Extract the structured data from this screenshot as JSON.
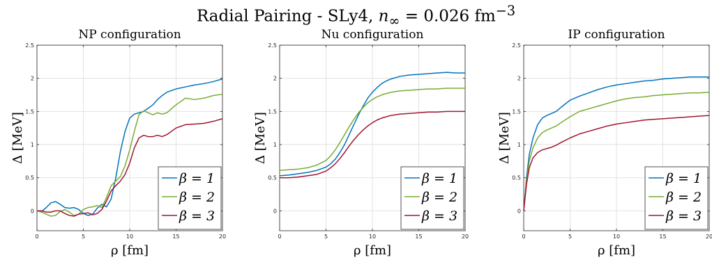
{
  "suptitle": {
    "prefix": "Radial Pairing - SLy4, ",
    "n_sym": "n",
    "n_sub": "∞",
    "value": " = 0.026 fm",
    "exp": "−3"
  },
  "colors": {
    "beta1": "#0072BD",
    "beta2": "#77AC30",
    "beta3": "#A2142F",
    "grid": "#e2e2e2",
    "axis": "#262626"
  },
  "chart_data": [
    {
      "type": "line",
      "title": "NP configuration",
      "xlabel": "ρ [fm]",
      "ylabel": "Δ [MeV]",
      "xlim": [
        0,
        20
      ],
      "ylim": [
        -0.3,
        2.5
      ],
      "xticks": [
        0,
        5,
        10,
        15,
        20
      ],
      "yticks": [
        0,
        0.5,
        1,
        1.5,
        2,
        2.5
      ],
      "grid": true,
      "legend_position": "bottom-right",
      "series": [
        {
          "name": "β = 1",
          "color": "#0072BD",
          "x": [
            0,
            0.5,
            1,
            1.5,
            2,
            2.5,
            3,
            3.5,
            4,
            4.5,
            5,
            5.5,
            6,
            6.5,
            7,
            7.5,
            8,
            8.5,
            9,
            9.5,
            10,
            10.5,
            11,
            11.5,
            12,
            12.5,
            13,
            13.5,
            14,
            15,
            16,
            17,
            18,
            19,
            20
          ],
          "y": [
            0,
            -0.01,
            0.05,
            0.12,
            0.14,
            0.1,
            0.05,
            0.04,
            0.05,
            0.02,
            -0.04,
            -0.07,
            -0.05,
            0.04,
            0.1,
            0.06,
            0.18,
            0.5,
            0.9,
            1.2,
            1.4,
            1.46,
            1.48,
            1.5,
            1.55,
            1.6,
            1.68,
            1.74,
            1.79,
            1.84,
            1.87,
            1.9,
            1.92,
            1.95,
            1.99
          ]
        },
        {
          "name": "β = 2",
          "color": "#77AC30",
          "x": [
            0,
            0.5,
            1,
            1.5,
            2,
            2.5,
            3,
            3.5,
            4,
            4.5,
            5,
            5.5,
            6,
            6.5,
            7,
            7.5,
            8,
            8.5,
            9,
            9.5,
            10,
            10.5,
            11,
            11.5,
            12,
            12.5,
            13,
            13.5,
            14,
            15,
            16,
            17,
            18,
            19,
            20
          ],
          "y": [
            0,
            -0.02,
            -0.05,
            -0.08,
            -0.07,
            -0.01,
            0.02,
            -0.02,
            -0.07,
            -0.05,
            0.02,
            0.05,
            0.06,
            0.08,
            0.05,
            0.2,
            0.38,
            0.45,
            0.52,
            0.68,
            0.92,
            1.2,
            1.45,
            1.51,
            1.48,
            1.45,
            1.48,
            1.46,
            1.48,
            1.6,
            1.7,
            1.68,
            1.7,
            1.74,
            1.76
          ]
        },
        {
          "name": "β = 3",
          "color": "#A2142F",
          "x": [
            0,
            0.5,
            1,
            1.5,
            2,
            2.5,
            3,
            3.5,
            4,
            4.5,
            5,
            5.5,
            6,
            6.5,
            7,
            7.5,
            8,
            8.5,
            9,
            9.5,
            10,
            10.5,
            11,
            11.5,
            12,
            12.5,
            13,
            13.5,
            14,
            15,
            16,
            17,
            18,
            19,
            20
          ],
          "y": [
            0,
            0,
            -0.02,
            -0.02,
            0,
            0,
            -0.04,
            -0.07,
            -0.08,
            -0.05,
            -0.04,
            -0.03,
            -0.06,
            -0.04,
            0.02,
            0.15,
            0.3,
            0.38,
            0.45,
            0.55,
            0.72,
            0.95,
            1.1,
            1.14,
            1.12,
            1.12,
            1.14,
            1.12,
            1.15,
            1.25,
            1.3,
            1.31,
            1.32,
            1.35,
            1.39
          ]
        }
      ]
    },
    {
      "type": "line",
      "title": "Nu configuration",
      "xlabel": "ρ [fm]",
      "ylabel": "Δ [MeV]",
      "xlim": [
        0,
        20
      ],
      "ylim": [
        -0.3,
        2.5
      ],
      "xticks": [
        0,
        5,
        10,
        15,
        20
      ],
      "yticks": [
        0,
        0.5,
        1,
        1.5,
        2,
        2.5
      ],
      "grid": true,
      "legend_position": "bottom-right",
      "series": [
        {
          "name": "β = 1",
          "color": "#0072BD",
          "x": [
            0,
            1,
            2,
            3,
            4,
            5,
            5.5,
            6,
            6.5,
            7,
            7.5,
            8,
            8.5,
            9,
            9.5,
            10,
            10.5,
            11,
            11.5,
            12,
            13,
            14,
            15,
            16,
            17,
            18,
            19,
            20
          ],
          "y": [
            0.53,
            0.54,
            0.56,
            0.58,
            0.61,
            0.66,
            0.71,
            0.78,
            0.88,
            1.0,
            1.15,
            1.3,
            1.45,
            1.58,
            1.7,
            1.79,
            1.86,
            1.92,
            1.96,
            1.99,
            2.03,
            2.05,
            2.06,
            2.07,
            2.08,
            2.09,
            2.08,
            2.08
          ]
        },
        {
          "name": "β = 2",
          "color": "#77AC30",
          "x": [
            0,
            1,
            2,
            3,
            4,
            5,
            5.5,
            6,
            6.5,
            7,
            7.5,
            8,
            8.5,
            9,
            9.5,
            10,
            10.5,
            11,
            11.5,
            12,
            13,
            14,
            15,
            16,
            17,
            18,
            19,
            20
          ],
          "y": [
            0.61,
            0.62,
            0.63,
            0.65,
            0.69,
            0.76,
            0.83,
            0.92,
            1.03,
            1.15,
            1.27,
            1.38,
            1.48,
            1.56,
            1.63,
            1.68,
            1.72,
            1.75,
            1.77,
            1.79,
            1.81,
            1.82,
            1.83,
            1.84,
            1.84,
            1.85,
            1.85,
            1.85
          ]
        },
        {
          "name": "β = 3",
          "color": "#A2142F",
          "x": [
            0,
            1,
            2,
            3,
            4,
            5,
            5.5,
            6,
            6.5,
            7,
            7.5,
            8,
            8.5,
            9,
            9.5,
            10,
            10.5,
            11,
            11.5,
            12,
            13,
            14,
            15,
            16,
            17,
            18,
            19,
            20
          ],
          "y": [
            0.5,
            0.5,
            0.51,
            0.53,
            0.55,
            0.6,
            0.65,
            0.71,
            0.79,
            0.88,
            0.98,
            1.07,
            1.15,
            1.22,
            1.28,
            1.33,
            1.37,
            1.4,
            1.42,
            1.44,
            1.46,
            1.47,
            1.48,
            1.49,
            1.49,
            1.5,
            1.5,
            1.5
          ]
        }
      ]
    },
    {
      "type": "line",
      "title": "IP configuration",
      "xlabel": "ρ [fm]",
      "ylabel": "Δ [MeV]",
      "xlim": [
        0,
        20
      ],
      "ylim": [
        -0.3,
        2.5
      ],
      "xticks": [
        0,
        5,
        10,
        15,
        20
      ],
      "yticks": [
        0,
        0.5,
        1,
        1.5,
        2,
        2.5
      ],
      "grid": true,
      "legend_position": "bottom-right",
      "series": [
        {
          "name": "β = 1",
          "color": "#0072BD",
          "x": [
            0,
            0.3,
            0.6,
            1,
            1.5,
            2,
            2.5,
            3,
            3.5,
            4,
            5,
            6,
            7,
            8,
            9,
            10,
            11,
            12,
            13,
            14,
            15,
            16,
            17,
            18,
            19,
            20
          ],
          "y": [
            0,
            0.5,
            0.85,
            1.1,
            1.3,
            1.4,
            1.44,
            1.47,
            1.5,
            1.56,
            1.67,
            1.73,
            1.78,
            1.83,
            1.87,
            1.9,
            1.92,
            1.94,
            1.96,
            1.97,
            1.99,
            2.0,
            2.01,
            2.02,
            2.02,
            2.02
          ]
        },
        {
          "name": "β = 2",
          "color": "#77AC30",
          "x": [
            0,
            0.3,
            0.6,
            1,
            1.5,
            2,
            2.5,
            3,
            3.5,
            4,
            5,
            6,
            7,
            8,
            9,
            10,
            11,
            12,
            13,
            14,
            15,
            16,
            17,
            18,
            19,
            20
          ],
          "y": [
            0,
            0.45,
            0.75,
            0.95,
            1.1,
            1.18,
            1.22,
            1.25,
            1.28,
            1.33,
            1.42,
            1.5,
            1.54,
            1.58,
            1.62,
            1.66,
            1.69,
            1.71,
            1.72,
            1.74,
            1.75,
            1.76,
            1.77,
            1.78,
            1.78,
            1.79
          ]
        },
        {
          "name": "β = 3",
          "color": "#A2142F",
          "x": [
            0,
            0.3,
            0.6,
            1,
            1.5,
            2,
            2.5,
            3,
            3.5,
            4,
            5,
            6,
            7,
            8,
            9,
            10,
            11,
            12,
            13,
            14,
            15,
            16,
            17,
            18,
            19,
            20
          ],
          "y": [
            0,
            0.4,
            0.65,
            0.8,
            0.88,
            0.92,
            0.94,
            0.96,
            0.99,
            1.03,
            1.1,
            1.16,
            1.2,
            1.24,
            1.28,
            1.31,
            1.33,
            1.35,
            1.37,
            1.38,
            1.39,
            1.4,
            1.41,
            1.42,
            1.43,
            1.44
          ]
        }
      ]
    }
  ]
}
